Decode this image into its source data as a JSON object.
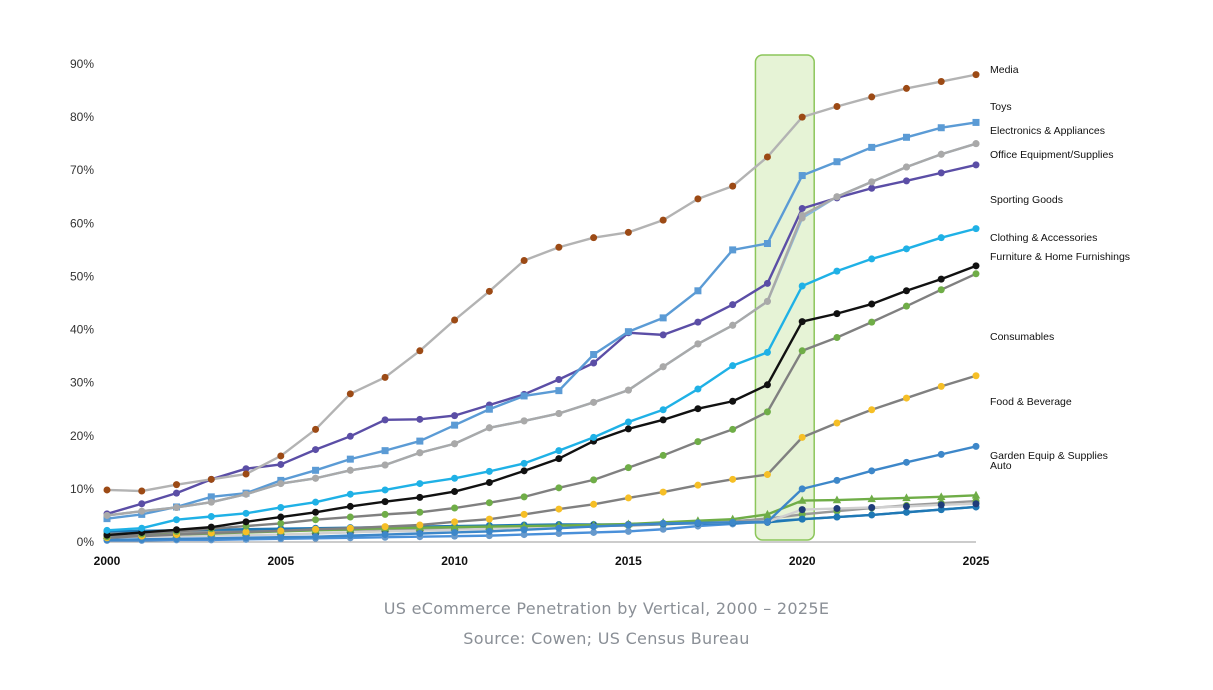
{
  "caption": {
    "title": "US eCommerce Penetration by Vertical, 2000 – 2025E",
    "source": "Source: Cowen; US Census Bureau"
  },
  "chart_data": {
    "type": "line",
    "x": [
      2000,
      2001,
      2002,
      2003,
      2004,
      2005,
      2006,
      2007,
      2008,
      2009,
      2010,
      2011,
      2012,
      2013,
      2014,
      2015,
      2016,
      2017,
      2018,
      2019,
      2020,
      2021,
      2022,
      2023,
      2024,
      2025
    ],
    "xticks": [
      2000,
      2005,
      2010,
      2015,
      2020,
      2025
    ],
    "xtick_labels": [
      "2000",
      "2005",
      "2010",
      "2015",
      "2020",
      "2025"
    ],
    "yticks": [
      0,
      10,
      20,
      30,
      40,
      50,
      60,
      70,
      80,
      90
    ],
    "ytick_labels": [
      "0%",
      "10%",
      "20%",
      "30%",
      "40%",
      "50%",
      "60%",
      "70%",
      "80%",
      "90%"
    ],
    "xlim": [
      2000,
      2025
    ],
    "ylim": [
      0,
      90
    ],
    "title": "",
    "xlabel": "",
    "ylabel": "",
    "grid": false,
    "highlight": {
      "x_from": 2019,
      "x_to": 2020,
      "color": "#e6f3d6",
      "stroke": "#8cc65a"
    },
    "series": [
      {
        "name": "Media",
        "line_color": "#b3b3b3",
        "marker_color": "#9c4a15",
        "marker": "circle",
        "values": [
          9.8,
          9.6,
          10.8,
          11.8,
          12.8,
          16.2,
          21.2,
          27.9,
          31.0,
          36.0,
          41.8,
          47.2,
          53.0,
          55.5,
          57.3,
          58.3,
          60.6,
          64.6,
          67.0,
          72.5,
          80.0,
          82.0,
          83.8,
          85.4,
          86.7,
          88.0
        ]
      },
      {
        "name": "Toys",
        "line_color": "#a9a9a9",
        "marker_color": "#a9a9a9",
        "marker": "circle",
        "values": [
          5.0,
          5.8,
          6.5,
          7.5,
          9.0,
          11.0,
          12.0,
          13.5,
          14.5,
          16.8,
          18.5,
          21.5,
          22.8,
          24.2,
          26.3,
          28.6,
          33.0,
          37.3,
          40.8,
          45.3,
          61.5,
          65.0,
          67.8,
          70.6,
          73.0,
          75.0
        ]
      },
      {
        "name": "Electronics & Appliances",
        "line_color": "#5b9bd5",
        "marker_color": "#5b9bd5",
        "marker": "square",
        "values": [
          4.4,
          5.2,
          6.6,
          8.5,
          9.2,
          11.6,
          13.5,
          15.6,
          17.2,
          19.0,
          22.0,
          25.0,
          27.5,
          28.5,
          35.3,
          39.6,
          42.2,
          47.3,
          55.0,
          56.2,
          69.0,
          71.6,
          74.3,
          76.2,
          78.0,
          79.0
        ]
      },
      {
        "name": "Office Equipment/Supplies",
        "line_color": "#8ab8dc",
        "marker_color": "#a9a9a9",
        "marker": "circle",
        "values": [
          5.0,
          5.8,
          6.5,
          7.5,
          9.0,
          11.0,
          12.0,
          13.5,
          14.5,
          16.8,
          18.5,
          21.5,
          22.8,
          24.2,
          26.3,
          28.6,
          33.0,
          37.3,
          40.8,
          45.3,
          61.0,
          65.0,
          67.8,
          70.6,
          73.0,
          75.0
        ]
      },
      {
        "name": "Sporting Goods",
        "line_color": "#5b4ea6",
        "marker_color": "#5b4ea6",
        "marker": "circle",
        "values": [
          5.3,
          7.2,
          9.2,
          11.8,
          13.8,
          14.6,
          17.4,
          19.9,
          23.0,
          23.1,
          23.8,
          25.8,
          27.8,
          30.6,
          33.7,
          39.4,
          39.0,
          41.4,
          44.7,
          48.7,
          62.8,
          64.8,
          66.6,
          68.0,
          69.5,
          71.0
        ]
      },
      {
        "name": "Clothing & Accessories",
        "line_color": "#1fb1e6",
        "marker_color": "#1fb1e6",
        "marker": "circle",
        "values": [
          2.2,
          2.6,
          4.2,
          4.8,
          5.4,
          6.5,
          7.5,
          9.0,
          9.8,
          11.0,
          12.0,
          13.3,
          14.8,
          17.2,
          19.7,
          22.6,
          24.9,
          28.8,
          33.2,
          35.7,
          48.2,
          51.0,
          53.3,
          55.2,
          57.3,
          59.0
        ]
      },
      {
        "name": "Furniture & Home Furnishings",
        "line_color": "#111111",
        "marker_color": "#111111",
        "marker": "circle",
        "values": [
          1.3,
          1.8,
          2.3,
          2.8,
          3.8,
          4.7,
          5.6,
          6.7,
          7.6,
          8.4,
          9.5,
          11.2,
          13.4,
          15.7,
          19.0,
          21.3,
          23.0,
          25.1,
          26.5,
          29.6,
          41.5,
          43.0,
          44.8,
          47.3,
          49.5,
          52.0
        ]
      },
      {
        "name": "Consumables",
        "line_color": "#808080",
        "marker_color": "#6fad47",
        "marker": "circle",
        "values": [
          1.0,
          1.5,
          2.0,
          2.5,
          3.0,
          3.5,
          4.2,
          4.7,
          5.2,
          5.6,
          6.4,
          7.4,
          8.5,
          10.2,
          11.7,
          14.0,
          16.3,
          18.9,
          21.2,
          24.5,
          36.0,
          38.5,
          41.4,
          44.4,
          47.5,
          50.5
        ]
      },
      {
        "name": "Food & Beverage",
        "line_color": "#808080",
        "marker_color": "#f6bf26",
        "marker": "circle",
        "values": [
          0.8,
          1.1,
          1.4,
          1.7,
          1.9,
          2.1,
          2.4,
          2.6,
          2.9,
          3.2,
          3.8,
          4.3,
          5.2,
          6.2,
          7.1,
          8.3,
          9.4,
          10.7,
          11.8,
          12.7,
          19.7,
          22.4,
          24.9,
          27.1,
          29.3,
          31.3
        ]
      },
      {
        "name": "Garden Equip & Supplies",
        "line_color": "#3d87c9",
        "marker_color": "#3d87c9",
        "marker": "circle",
        "values": [
          0.4,
          0.5,
          0.6,
          0.7,
          0.8,
          0.9,
          1.0,
          1.2,
          1.4,
          1.6,
          1.8,
          2.0,
          2.3,
          2.6,
          2.9,
          3.2,
          3.5,
          3.6,
          3.7,
          3.8,
          10.0,
          11.6,
          13.4,
          15.0,
          16.5,
          18.0
        ]
      },
      {
        "name": "Auto",
        "line_color": "#6fad47",
        "marker_color": "#6fad47",
        "marker": "triangle",
        "values": [
          1.2,
          1.3,
          1.4,
          1.6,
          1.8,
          2.0,
          2.2,
          2.4,
          2.6,
          2.7,
          2.8,
          2.9,
          3.0,
          3.1,
          3.2,
          3.4,
          3.7,
          4.0,
          4.3,
          5.2,
          7.8,
          7.9,
          8.1,
          8.3,
          8.5,
          8.8
        ]
      },
      {
        "name": "",
        "line_color": "#d0d0d0",
        "marker_color": "#1f3d7a",
        "marker": "circle",
        "values": [
          0.9,
          1.0,
          1.1,
          1.2,
          1.3,
          1.4,
          1.6,
          1.8,
          2.0,
          2.1,
          2.3,
          2.5,
          2.7,
          2.9,
          3.1,
          3.3,
          3.5,
          3.6,
          3.7,
          3.8,
          6.1,
          6.3,
          6.5,
          6.7,
          7.0,
          7.2
        ]
      },
      {
        "name": "",
        "line_color": "#1f78b4",
        "marker_color": "#1f78b4",
        "marker": "circle",
        "values": [
          2.0,
          2.1,
          2.2,
          2.3,
          2.4,
          2.5,
          2.6,
          2.7,
          2.8,
          2.9,
          3.0,
          3.1,
          3.2,
          3.3,
          3.3,
          3.3,
          3.4,
          3.5,
          3.6,
          3.7,
          4.3,
          4.7,
          5.1,
          5.6,
          6.1,
          6.6
        ]
      },
      {
        "name": "",
        "line_color": "#4a90d9",
        "marker_color": "#6699cc",
        "marker": "circle",
        "values": [
          0.3,
          0.3,
          0.4,
          0.4,
          0.5,
          0.6,
          0.7,
          0.8,
          0.9,
          1.0,
          1.1,
          1.2,
          1.4,
          1.6,
          1.8,
          2.0,
          2.4,
          3.0,
          3.4,
          3.9,
          4.3,
          4.7,
          5.1,
          5.6,
          6.1,
          6.6
        ]
      },
      {
        "name": "",
        "line_color": "#999999",
        "marker_color": "#6fad47",
        "marker": "circle",
        "values": [
          1.6,
          1.7,
          1.8,
          1.9,
          2.0,
          2.1,
          2.2,
          2.3,
          2.4,
          2.5,
          2.6,
          2.7,
          2.8,
          2.9,
          3.0,
          3.1,
          3.3,
          3.6,
          3.9,
          4.4,
          5.2,
          5.8,
          6.4,
          6.9,
          7.3,
          7.7
        ]
      }
    ],
    "labels": [
      "Media",
      "Toys",
      "Electronics & Appliances",
      "Office Equipment/Supplies",
      "Sporting Goods",
      "Clothing & Accessories",
      "Furniture & Home Furnishings",
      "Consumables",
      "Food & Beverage",
      "Garden Equip & Supplies",
      "Auto"
    ]
  }
}
